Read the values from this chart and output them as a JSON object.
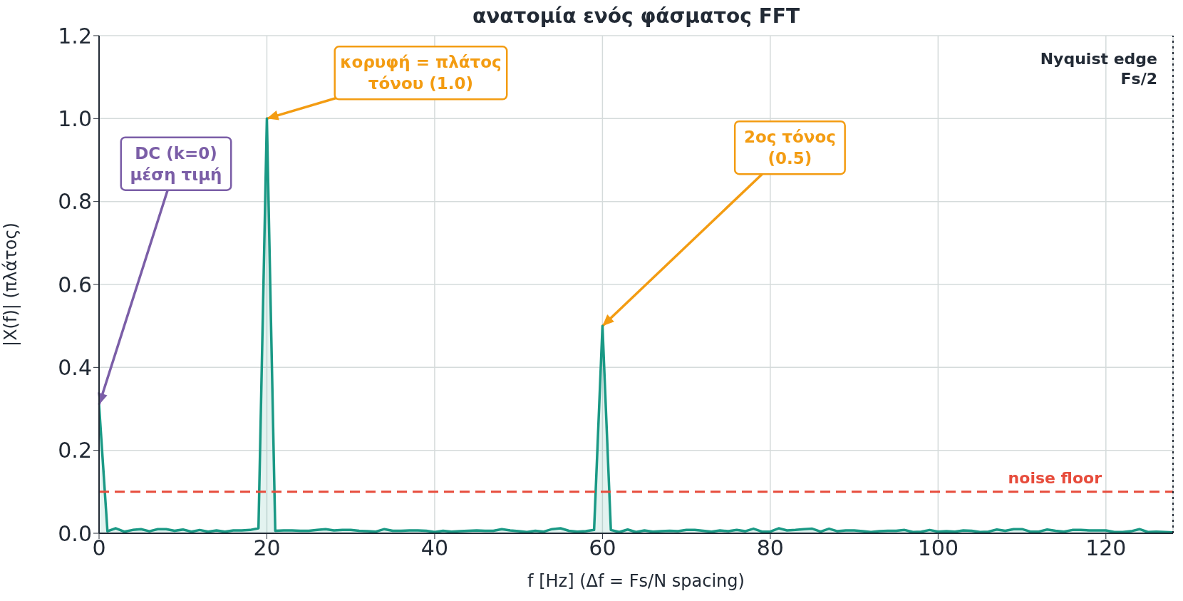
{
  "chart_data": {
    "type": "area",
    "title": "ανατομία ενός φάσματος FFT",
    "xlabel": "f [Hz]   (Δf = Fs/N spacing)",
    "ylabel": "|X(f)|   (πλάτος)",
    "x": [
      0,
      1,
      2,
      3,
      4,
      5,
      6,
      7,
      8,
      9,
      10,
      11,
      12,
      13,
      14,
      15,
      16,
      17,
      18,
      19,
      20,
      21,
      22,
      23,
      24,
      25,
      26,
      27,
      28,
      29,
      30,
      31,
      32,
      33,
      34,
      35,
      36,
      37,
      38,
      39,
      40,
      41,
      42,
      43,
      44,
      45,
      46,
      47,
      48,
      49,
      50,
      51,
      52,
      53,
      54,
      55,
      56,
      57,
      58,
      59,
      60,
      61,
      62,
      63,
      64,
      65,
      66,
      67,
      68,
      69,
      70,
      71,
      72,
      73,
      74,
      75,
      76,
      77,
      78,
      79,
      80,
      81,
      82,
      83,
      84,
      85,
      86,
      87,
      88,
      89,
      90,
      91,
      92,
      93,
      94,
      95,
      96,
      97,
      98,
      99,
      100,
      101,
      102,
      103,
      104,
      105,
      106,
      107,
      108,
      109,
      110,
      111,
      112,
      113,
      114,
      115,
      116,
      117,
      118,
      119,
      120,
      121,
      122,
      123,
      124,
      125,
      126,
      127,
      128
    ],
    "series": [
      {
        "color": "#1a9985",
        "values": [
          0.31,
          0.005,
          0.012,
          0.004,
          0.008,
          0.01,
          0.005,
          0.01,
          0.01,
          0.006,
          0.009,
          0.004,
          0.008,
          0.004,
          0.007,
          0.004,
          0.007,
          0.007,
          0.008,
          0.012,
          1.0,
          0.006,
          0.007,
          0.007,
          0.006,
          0.006,
          0.008,
          0.01,
          0.007,
          0.008,
          0.008,
          0.006,
          0.005,
          0.004,
          0.01,
          0.006,
          0.006,
          0.007,
          0.007,
          0.006,
          0.003,
          0.006,
          0.004,
          0.005,
          0.006,
          0.007,
          0.006,
          0.006,
          0.01,
          0.007,
          0.005,
          0.003,
          0.006,
          0.004,
          0.01,
          0.012,
          0.006,
          0.004,
          0.005,
          0.008,
          0.5,
          0.008,
          0.003,
          0.009,
          0.003,
          0.007,
          0.004,
          0.005,
          0.006,
          0.005,
          0.008,
          0.008,
          0.006,
          0.004,
          0.007,
          0.005,
          0.008,
          0.005,
          0.011,
          0.004,
          0.004,
          0.012,
          0.007,
          0.008,
          0.01,
          0.011,
          0.004,
          0.011,
          0.005,
          0.007,
          0.007,
          0.005,
          0.003,
          0.005,
          0.006,
          0.006,
          0.008,
          0.003,
          0.004,
          0.008,
          0.004,
          0.005,
          0.004,
          0.007,
          0.006,
          0.003,
          0.004,
          0.009,
          0.006,
          0.01,
          0.01,
          0.004,
          0.004,
          0.009,
          0.006,
          0.004,
          0.008,
          0.008,
          0.007,
          0.007,
          0.007,
          0.003,
          0.003,
          0.005,
          0.01,
          0.003,
          0.004,
          0.003,
          0.002
        ]
      }
    ],
    "xlim": [
      0,
      128
    ],
    "xticks": [
      0,
      20,
      40,
      60,
      80,
      100,
      120
    ],
    "ylim": [
      0,
      1.2
    ],
    "yticks": [
      {
        "value": 0,
        "label": "0.0"
      },
      0.2,
      0.4,
      0.6,
      0.8,
      {
        "value": 1,
        "label": "1.0"
      },
      1.2
    ],
    "grid": true,
    "legend": false,
    "ref_lines": [
      {
        "axis": "y",
        "value": 0.1,
        "label": "noise floor",
        "color": "#e74c3c",
        "line_style": "dashed"
      },
      {
        "axis": "x",
        "value": 128,
        "label": "Nyquist edge\nFs/2",
        "color": "#222a35",
        "line_style": "dotted"
      }
    ],
    "annotations": [
      {
        "text": "DC (k=0)\nμέση τιμή",
        "x": 0,
        "y": 0.31
      },
      {
        "text": "κορυφή = πλάτος\nτόνου (1.0)",
        "x": 20,
        "y": 1.0
      },
      {
        "text": "2ος τόνος\n(0.5)",
        "x": 60,
        "y": 0.5
      }
    ]
  }
}
